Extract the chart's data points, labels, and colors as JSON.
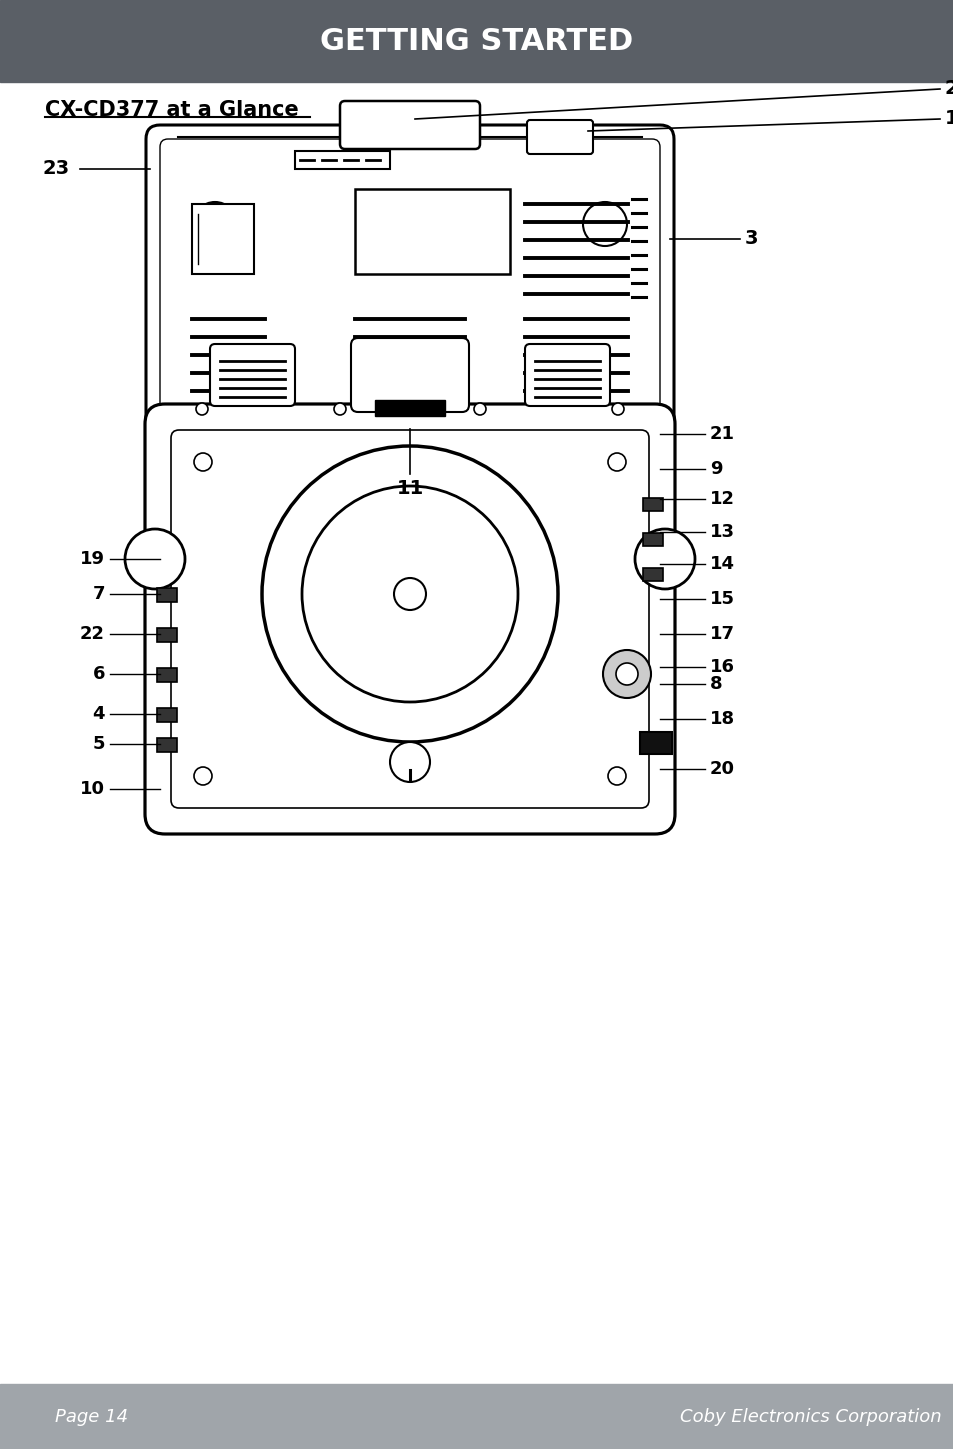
{
  "header_bg": "#5a5f66",
  "header_text": "GETTING STARTED",
  "header_text_color": "#ffffff",
  "footer_bg": "#a0a5aa",
  "footer_text_left": "Page 14",
  "footer_text_right": "Coby Electronics Corporation",
  "footer_text_color": "#ffffff",
  "subtitle": "CX-CD377 at a Glance",
  "body_bg": "#ffffff",
  "body_text_color": "#000000"
}
